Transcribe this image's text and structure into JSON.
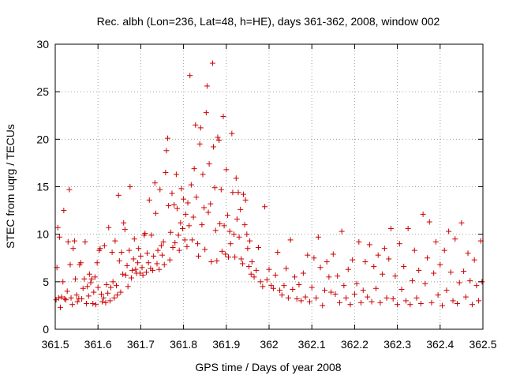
{
  "chart_data": {
    "type": "scatter",
    "title": "Rec. albh (Lon=236, Lat=48, h=HE), days 361-362, 2008, window 002",
    "xlabel": "GPS time / Days of year 2008",
    "ylabel": "STEC from uqrg / TECUs",
    "xlim": [
      361.5,
      362.5
    ],
    "ylim": [
      0,
      30
    ],
    "xticks": [
      "361.5",
      "361.6",
      "361.7",
      "361.8",
      "361.9",
      "362",
      "362.1",
      "362.2",
      "362.3",
      "362.4",
      "362.5"
    ],
    "yticks": [
      "0",
      "5",
      "10",
      "15",
      "20",
      "25",
      "30"
    ],
    "grid": true,
    "marker": "+",
    "series": [
      {
        "color": "#cc0000",
        "points": [
          [
            361.502,
            3.1
          ],
          [
            361.504,
            6.5
          ],
          [
            361.506,
            10.7
          ],
          [
            361.508,
            3.3
          ],
          [
            361.51,
            9.7
          ],
          [
            361.512,
            2.3
          ],
          [
            361.515,
            3.4
          ],
          [
            361.518,
            5.0
          ],
          [
            361.52,
            12.5
          ],
          [
            361.522,
            3.2
          ],
          [
            361.525,
            3.1
          ],
          [
            361.528,
            4.0
          ],
          [
            361.53,
            9.2
          ],
          [
            361.533,
            14.7
          ],
          [
            361.535,
            6.8
          ],
          [
            361.537,
            3.3
          ],
          [
            361.54,
            2.6
          ],
          [
            361.542,
            8.5
          ],
          [
            361.545,
            9.3
          ],
          [
            361.547,
            5.3
          ],
          [
            361.55,
            3.6
          ],
          [
            361.552,
            2.9
          ],
          [
            361.555,
            3.2
          ],
          [
            361.557,
            6.8
          ],
          [
            361.56,
            7.0
          ],
          [
            361.562,
            3.2
          ],
          [
            361.565,
            4.3
          ],
          [
            361.568,
            5.3
          ],
          [
            361.57,
            9.2
          ],
          [
            361.573,
            2.7
          ],
          [
            361.575,
            4.5
          ],
          [
            361.578,
            3.5
          ],
          [
            361.58,
            5.8
          ],
          [
            361.583,
            4.9
          ],
          [
            361.585,
            5.3
          ],
          [
            361.588,
            2.7
          ],
          [
            361.59,
            3.9
          ],
          [
            361.593,
            5.5
          ],
          [
            361.595,
            2.6
          ],
          [
            361.598,
            7.0
          ],
          [
            361.6,
            4.4
          ],
          [
            361.603,
            8.3
          ],
          [
            361.605,
            8.5
          ],
          [
            361.608,
            3.7
          ],
          [
            361.61,
            2.9
          ],
          [
            361.613,
            3.3
          ],
          [
            361.615,
            8.8
          ],
          [
            361.618,
            2.8
          ],
          [
            361.62,
            4.7
          ],
          [
            361.623,
            3.8
          ],
          [
            361.625,
            10.7
          ],
          [
            361.628,
            3.0
          ],
          [
            361.63,
            4.4
          ],
          [
            361.633,
            8.1
          ],
          [
            361.635,
            5.0
          ],
          [
            361.638,
            3.3
          ],
          [
            361.64,
            9.3
          ],
          [
            361.643,
            4.6
          ],
          [
            361.645,
            3.6
          ],
          [
            361.648,
            14.1
          ],
          [
            361.65,
            7.2
          ],
          [
            361.653,
            3.9
          ],
          [
            361.655,
            8.1
          ],
          [
            361.658,
            5.8
          ],
          [
            361.66,
            11.2
          ],
          [
            361.663,
            10.5
          ],
          [
            361.665,
            5.7
          ],
          [
            361.668,
            6.7
          ],
          [
            361.67,
            4.5
          ],
          [
            361.673,
            8.3
          ],
          [
            361.675,
            15.0
          ],
          [
            361.678,
            5.4
          ],
          [
            361.68,
            6.2
          ],
          [
            361.683,
            7.4
          ],
          [
            361.685,
            9.5
          ],
          [
            361.688,
            6.3
          ],
          [
            361.69,
            5.9
          ],
          [
            361.693,
            7.0
          ],
          [
            361.695,
            8.5
          ],
          [
            361.698,
            5.9
          ],
          [
            361.7,
            7.7
          ],
          [
            361.703,
            6.5
          ],
          [
            361.705,
            5.7
          ],
          [
            361.708,
            9.9
          ],
          [
            361.71,
            10.1
          ],
          [
            361.713,
            6.0
          ],
          [
            361.715,
            8.0
          ],
          [
            361.718,
            7.0
          ],
          [
            361.72,
            13.6
          ],
          [
            361.723,
            6.4
          ],
          [
            361.725,
            9.9
          ],
          [
            361.728,
            6.2
          ],
          [
            361.73,
            7.7
          ],
          [
            361.733,
            15.4
          ],
          [
            361.735,
            12.2
          ],
          [
            361.738,
            6.9
          ],
          [
            361.74,
            8.3
          ],
          [
            361.743,
            6.3
          ],
          [
            361.745,
            14.7
          ],
          [
            361.748,
            8.8
          ],
          [
            361.75,
            7.8
          ],
          [
            361.753,
            9.2
          ],
          [
            361.755,
            6.8
          ],
          [
            361.758,
            16.5
          ],
          [
            361.76,
            18.8
          ],
          [
            361.763,
            20.1
          ],
          [
            361.765,
            13.0
          ],
          [
            361.768,
            7.3
          ],
          [
            361.77,
            10.2
          ],
          [
            361.773,
            14.3
          ],
          [
            361.775,
            8.6
          ],
          [
            361.778,
            13.1
          ],
          [
            361.78,
            9.1
          ],
          [
            361.783,
            16.3
          ],
          [
            361.785,
            12.7
          ],
          [
            361.788,
            9.9
          ],
          [
            361.79,
            8.3
          ],
          [
            361.793,
            11.2
          ],
          [
            361.795,
            14.8
          ],
          [
            361.798,
            10.6
          ],
          [
            361.8,
            13.7
          ],
          [
            361.803,
            9.4
          ],
          [
            361.805,
            12.1
          ],
          [
            361.808,
            8.7
          ],
          [
            361.81,
            13.3
          ],
          [
            361.813,
            10.9
          ],
          [
            361.815,
            26.7
          ],
          [
            361.818,
            15.2
          ],
          [
            361.82,
            9.4
          ],
          [
            361.823,
            11.8
          ],
          [
            361.825,
            16.9
          ],
          [
            361.828,
            21.5
          ],
          [
            361.83,
            13.9
          ],
          [
            361.833,
            9.0
          ],
          [
            361.835,
            7.7
          ],
          [
            361.838,
            19.5
          ],
          [
            361.84,
            21.2
          ],
          [
            361.843,
            11.0
          ],
          [
            361.845,
            16.3
          ],
          [
            361.848,
            12.8
          ],
          [
            361.85,
            8.4
          ],
          [
            361.853,
            22.8
          ],
          [
            361.855,
            25.6
          ],
          [
            361.858,
            12.3
          ],
          [
            361.86,
            17.4
          ],
          [
            361.863,
            13.2
          ],
          [
            361.865,
            7.1
          ],
          [
            361.868,
            28.0
          ],
          [
            361.87,
            19.2
          ],
          [
            361.873,
            14.9
          ],
          [
            361.875,
            10.4
          ],
          [
            361.878,
            7.2
          ],
          [
            361.88,
            20.2
          ],
          [
            361.883,
            19.9
          ],
          [
            361.885,
            11.1
          ],
          [
            361.888,
            14.7
          ],
          [
            361.89,
            8.2
          ],
          [
            361.893,
            22.4
          ],
          [
            361.895,
            10.9
          ],
          [
            361.898,
            7.9
          ],
          [
            361.9,
            16.8
          ],
          [
            361.903,
            12.0
          ],
          [
            361.905,
            7.6
          ],
          [
            361.908,
            10.3
          ],
          [
            361.91,
            9.0
          ],
          [
            361.913,
            20.6
          ],
          [
            361.915,
            14.4
          ],
          [
            361.918,
            10.0
          ],
          [
            361.92,
            7.6
          ],
          [
            361.923,
            15.9
          ],
          [
            361.925,
            11.6
          ],
          [
            361.928,
            14.4
          ],
          [
            361.93,
            9.7
          ],
          [
            361.933,
            12.6
          ],
          [
            361.935,
            7.4
          ],
          [
            361.938,
            6.9
          ],
          [
            361.94,
            14.2
          ],
          [
            361.943,
            11.0
          ],
          [
            361.945,
            13.6
          ],
          [
            361.948,
            10.0
          ],
          [
            361.95,
            8.5
          ],
          [
            361.953,
            6.6
          ],
          [
            361.955,
            9.3
          ],
          [
            361.958,
            5.8
          ],
          [
            361.96,
            7.1
          ],
          [
            361.965,
            5.5
          ],
          [
            361.97,
            6.2
          ],
          [
            361.975,
            8.6
          ],
          [
            361.98,
            5.0
          ],
          [
            361.985,
            4.5
          ],
          [
            361.99,
            12.9
          ],
          [
            361.995,
            5.2
          ],
          [
            362.0,
            6.3
          ],
          [
            362.005,
            4.6
          ],
          [
            362.01,
            4.3
          ],
          [
            362.015,
            5.7
          ],
          [
            362.02,
            8.1
          ],
          [
            362.025,
            4.1
          ],
          [
            362.03,
            3.6
          ],
          [
            362.035,
            4.6
          ],
          [
            362.04,
            6.4
          ],
          [
            362.045,
            3.3
          ],
          [
            362.05,
            9.4
          ],
          [
            362.055,
            4.2
          ],
          [
            362.06,
            5.5
          ],
          [
            362.065,
            3.2
          ],
          [
            362.07,
            4.7
          ],
          [
            362.075,
            3.0
          ],
          [
            362.08,
            5.9
          ],
          [
            362.085,
            3.4
          ],
          [
            362.09,
            7.8
          ],
          [
            362.095,
            2.9
          ],
          [
            362.1,
            4.4
          ],
          [
            362.105,
            7.5
          ],
          [
            362.11,
            3.3
          ],
          [
            362.115,
            9.7
          ],
          [
            362.12,
            6.5
          ],
          [
            362.125,
            2.5
          ],
          [
            362.13,
            4.1
          ],
          [
            362.135,
            7.1
          ],
          [
            362.14,
            5.5
          ],
          [
            362.145,
            3.9
          ],
          [
            362.15,
            7.9
          ],
          [
            362.155,
            3.7
          ],
          [
            362.16,
            5.6
          ],
          [
            362.165,
            2.8
          ],
          [
            362.17,
            10.3
          ],
          [
            362.175,
            4.6
          ],
          [
            362.18,
            3.3
          ],
          [
            362.185,
            6.3
          ],
          [
            362.19,
            2.6
          ],
          [
            362.195,
            7.3
          ],
          [
            362.2,
            3.7
          ],
          [
            362.205,
            4.8
          ],
          [
            362.21,
            9.2
          ],
          [
            362.215,
            2.8
          ],
          [
            362.22,
            4.1
          ],
          [
            362.225,
            7.1
          ],
          [
            362.23,
            3.4
          ],
          [
            362.235,
            8.9
          ],
          [
            362.24,
            2.9
          ],
          [
            362.245,
            6.6
          ],
          [
            362.25,
            4.3
          ],
          [
            362.255,
            7.8
          ],
          [
            362.26,
            2.8
          ],
          [
            362.265,
            5.8
          ],
          [
            362.27,
            8.5
          ],
          [
            362.275,
            3.3
          ],
          [
            362.28,
            7.4
          ],
          [
            362.285,
            10.6
          ],
          [
            362.29,
            3.2
          ],
          [
            362.295,
            5.6
          ],
          [
            362.3,
            2.6
          ],
          [
            362.305,
            9.0
          ],
          [
            362.31,
            4.2
          ],
          [
            362.315,
            6.6
          ],
          [
            362.32,
            3.0
          ],
          [
            362.325,
            10.6
          ],
          [
            362.33,
            2.6
          ],
          [
            362.335,
            5.1
          ],
          [
            362.34,
            8.3
          ],
          [
            362.345,
            3.3
          ],
          [
            362.35,
            6.2
          ],
          [
            362.355,
            2.7
          ],
          [
            362.36,
            12.1
          ],
          [
            362.365,
            4.8
          ],
          [
            362.37,
            7.5
          ],
          [
            362.375,
            11.3
          ],
          [
            362.38,
            2.8
          ],
          [
            362.385,
            5.9
          ],
          [
            362.39,
            9.2
          ],
          [
            362.395,
            3.6
          ],
          [
            362.4,
            6.8
          ],
          [
            362.405,
            2.5
          ],
          [
            362.41,
            8.3
          ],
          [
            362.415,
            4.1
          ],
          [
            362.42,
            10.3
          ],
          [
            362.425,
            6.0
          ],
          [
            362.43,
            3.0
          ],
          [
            362.435,
            9.5
          ],
          [
            362.44,
            2.7
          ],
          [
            362.445,
            4.9
          ],
          [
            362.45,
            11.2
          ],
          [
            362.455,
            6.1
          ],
          [
            362.46,
            3.4
          ],
          [
            362.465,
            8.0
          ],
          [
            362.47,
            5.1
          ],
          [
            362.475,
            2.6
          ],
          [
            362.48,
            7.3
          ],
          [
            362.485,
            4.6
          ],
          [
            362.49,
            3.0
          ],
          [
            362.495,
            9.3
          ],
          [
            362.498,
            5.0
          ]
        ]
      }
    ]
  }
}
